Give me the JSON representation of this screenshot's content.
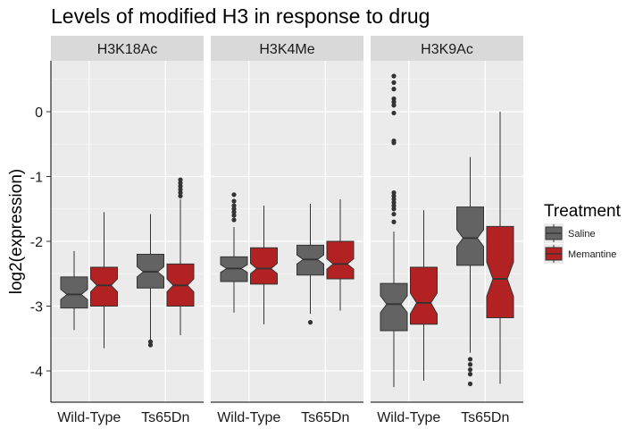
{
  "chart_data": {
    "type": "boxplot",
    "title": "Levels of modified H3 in response to drug",
    "xlabel": "",
    "ylabel": "log2(expression)",
    "ylim": [
      -4.5,
      0.8
    ],
    "y_ticks": [
      0,
      -1,
      -2,
      -3,
      -4
    ],
    "grid": true,
    "notched": true,
    "categories": [
      "Wild-Type",
      "Ts65Dn"
    ],
    "legend": {
      "title": "Treatment",
      "position": "right",
      "entries": [
        {
          "name": "Saline",
          "color": "#636363"
        },
        {
          "name": "Memantine",
          "color": "#b22222"
        }
      ]
    },
    "panels": [
      {
        "label": "H3K18Ac",
        "boxes": [
          {
            "category": "Wild-Type",
            "group": "Saline",
            "whisker_low": -3.37,
            "q1": -3.03,
            "median": -2.82,
            "q3": -2.55,
            "whisker_high": -2.15,
            "notch": [
              -2.9,
              -2.74
            ],
            "outliers": []
          },
          {
            "category": "Wild-Type",
            "group": "Memantine",
            "whisker_low": -3.65,
            "q1": -3.0,
            "median": -2.68,
            "q3": -2.4,
            "whisker_high": -1.55,
            "notch": [
              -2.78,
              -2.58
            ],
            "outliers": []
          },
          {
            "category": "Ts65Dn",
            "group": "Saline",
            "whisker_low": -3.52,
            "q1": -2.72,
            "median": -2.47,
            "q3": -2.2,
            "whisker_high": -1.58,
            "notch": [
              -2.55,
              -2.39
            ],
            "outliers": [
              -3.55,
              -3.6
            ]
          },
          {
            "category": "Ts65Dn",
            "group": "Memantine",
            "whisker_low": -3.45,
            "q1": -3.0,
            "median": -2.68,
            "q3": -2.35,
            "whisker_high": -1.35,
            "notch": [
              -2.78,
              -2.58
            ],
            "outliers": [
              -1.05,
              -1.1,
              -1.15,
              -1.2,
              -1.25,
              -1.3
            ]
          }
        ]
      },
      {
        "label": "H3K4Me",
        "boxes": [
          {
            "category": "Wild-Type",
            "group": "Saline",
            "whisker_low": -3.1,
            "q1": -2.62,
            "median": -2.42,
            "q3": -2.24,
            "whisker_high": -1.78,
            "notch": [
              -2.48,
              -2.36
            ],
            "outliers": [
              -1.28,
              -1.38,
              -1.45,
              -1.5,
              -1.55,
              -1.6,
              -1.67
            ]
          },
          {
            "category": "Wild-Type",
            "group": "Memantine",
            "whisker_low": -3.28,
            "q1": -2.66,
            "median": -2.42,
            "q3": -2.1,
            "whisker_high": -1.45,
            "notch": [
              -2.5,
              -2.34
            ],
            "outliers": []
          },
          {
            "category": "Ts65Dn",
            "group": "Saline",
            "whisker_low": -3.12,
            "q1": -2.52,
            "median": -2.28,
            "q3": -2.06,
            "whisker_high": -1.42,
            "notch": [
              -2.35,
              -2.21
            ],
            "outliers": [
              -3.25
            ]
          },
          {
            "category": "Ts65Dn",
            "group": "Memantine",
            "whisker_low": -3.07,
            "q1": -2.58,
            "median": -2.35,
            "q3": -2.0,
            "whisker_high": -1.35,
            "notch": [
              -2.43,
              -2.27
            ],
            "outliers": []
          }
        ]
      },
      {
        "label": "H3K9Ac",
        "boxes": [
          {
            "category": "Wild-Type",
            "group": "Saline",
            "whisker_low": -4.25,
            "q1": -3.38,
            "median": -2.97,
            "q3": -2.65,
            "whisker_high": -1.85,
            "notch": [
              -3.1,
              -2.84
            ],
            "outliers": [
              0.55,
              0.45,
              0.35,
              0.2,
              0.15,
              0.1,
              -0.02,
              -0.45,
              -0.48,
              -1.25,
              -1.3,
              -1.35,
              -1.4,
              -1.45,
              -1.5,
              -1.58,
              -1.7
            ]
          },
          {
            "category": "Wild-Type",
            "group": "Memantine",
            "whisker_low": -4.15,
            "q1": -3.28,
            "median": -2.95,
            "q3": -2.4,
            "whisker_high": -1.52,
            "notch": [
              -3.12,
              -2.8
            ],
            "outliers": []
          },
          {
            "category": "Ts65Dn",
            "group": "Saline",
            "whisker_low": -3.72,
            "q1": -2.37,
            "median": -1.95,
            "q3": -1.47,
            "whisker_high": -0.7,
            "notch": [
              -2.08,
              -1.82
            ],
            "outliers": [
              -3.82,
              -3.9,
              -3.98,
              -4.05,
              -4.2
            ]
          },
          {
            "category": "Ts65Dn",
            "group": "Memantine",
            "whisker_low": -4.2,
            "q1": -3.18,
            "median": -2.58,
            "q3": -1.77,
            "whisker_high": 0.0,
            "notch": [
              -2.85,
              -2.32
            ],
            "outliers": []
          }
        ]
      }
    ]
  }
}
